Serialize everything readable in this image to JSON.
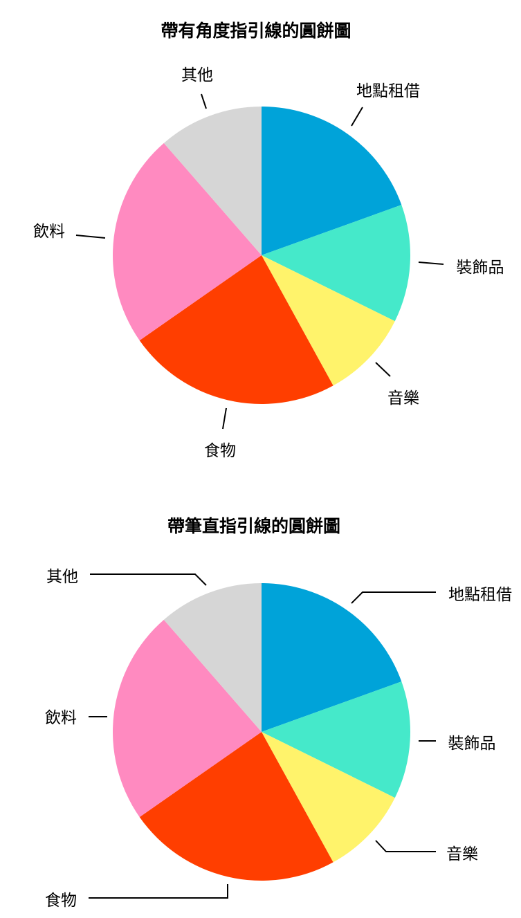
{
  "chart_data": [
    {
      "type": "pie",
      "title": "帶有角度指引線的圓餅圖",
      "leader_style": "angled",
      "categories": [
        "地點租借",
        "裝飾品",
        "音樂",
        "食物",
        "飲料",
        "其他"
      ],
      "values": [
        19.5,
        12.8,
        9.7,
        23.3,
        23.3,
        11.4
      ],
      "colors": [
        "#00A3D9",
        "#45E9CA",
        "#FFF36B",
        "#FF3E00",
        "#FF8AC0",
        "#D6D6D6"
      ],
      "start": "top",
      "direction": "clockwise"
    },
    {
      "type": "pie",
      "title": "帶筆直指引線的圓餅圖",
      "leader_style": "straight",
      "categories": [
        "地點租借",
        "裝飾品",
        "音樂",
        "食物",
        "飲料",
        "其他"
      ],
      "values": [
        19.5,
        12.8,
        9.7,
        23.3,
        23.3,
        11.4
      ],
      "colors": [
        "#00A3D9",
        "#45E9CA",
        "#FFF36B",
        "#FF3E00",
        "#FF8AC0",
        "#D6D6D6"
      ],
      "start": "top",
      "direction": "clockwise"
    }
  ]
}
